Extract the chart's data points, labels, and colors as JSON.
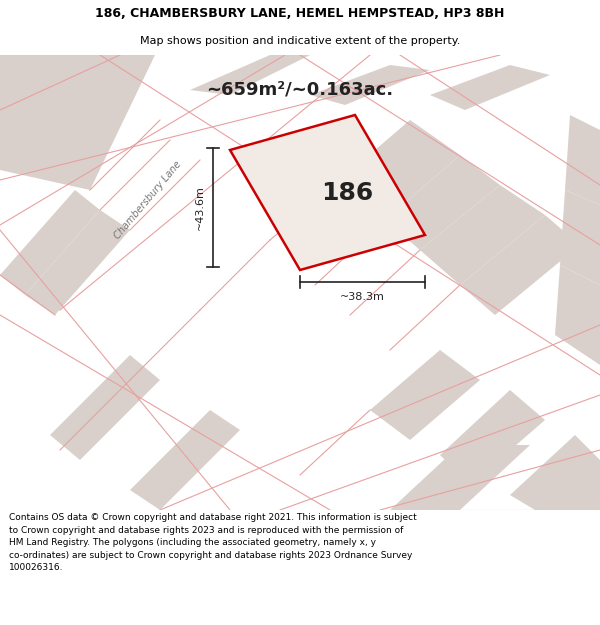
{
  "title_line1": "186, CHAMBERSBURY LANE, HEMEL HEMPSTEAD, HP3 8BH",
  "title_line2": "Map shows position and indicative extent of the property.",
  "area_text": "~659m²/~0.163ac.",
  "property_number": "186",
  "dim_vertical": "~43.6m",
  "dim_horizontal": "~38.3m",
  "road_label": "Chambersbury Lane",
  "footer_text": "Contains OS data © Crown copyright and database right 2021. This information is subject to Crown copyright and database rights 2023 and is reproduced with the permission of HM Land Registry. The polygons (including the associated geometry, namely x, y co-ordinates) are subject to Crown copyright and database rights 2023 Ordnance Survey 100026316.",
  "map_bg": "#f2ebe5",
  "property_fill": "#f2ebe5",
  "property_edge": "#cc0000",
  "road_line_color": "#e8a0a0",
  "other_plot_color": "#d9d0cb",
  "header_bg": "#ffffff",
  "footer_bg": "#ffffff",
  "dim_color": "#222222",
  "text_color": "#222222"
}
